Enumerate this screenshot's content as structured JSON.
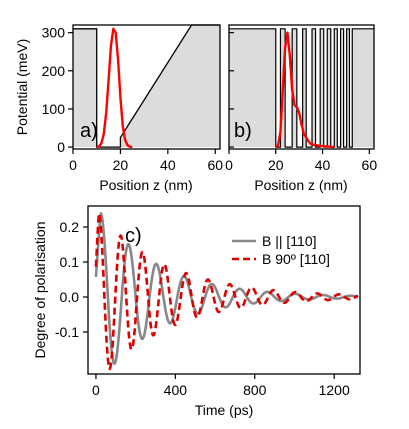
{
  "chart_data": [
    {
      "panel": "a)",
      "type": "line",
      "xlabel": "Position z (nm)",
      "ylabel": "Potential (meV)",
      "xlim": [
        0,
        62
      ],
      "ylim": [
        -5,
        320
      ],
      "xticks": [
        0,
        20,
        40,
        60
      ],
      "yticks": [
        0,
        100,
        200,
        300
      ],
      "potential": {
        "x": [
          0,
          10,
          10,
          18,
          18,
          20,
          20,
          50,
          50,
          62
        ],
        "y": [
          310,
          310,
          0,
          0,
          0,
          0,
          25,
          320,
          320,
          320
        ]
      },
      "wavefunction": {
        "x": [
          10,
          11,
          12,
          13,
          14,
          15,
          16,
          17,
          18,
          19,
          20,
          21,
          22,
          23,
          24,
          25
        ],
        "y": [
          0,
          2,
          10,
          35,
          90,
          175,
          265,
          310,
          300,
          230,
          130,
          55,
          18,
          5,
          1,
          0
        ]
      },
      "grid": false
    },
    {
      "panel": "b)",
      "type": "line",
      "xlabel": "Position z (nm)",
      "xlim": [
        0,
        62
      ],
      "ylim": [
        -5,
        320
      ],
      "xticks": [
        0,
        20,
        40,
        60
      ],
      "yticks": [
        0,
        100,
        200,
        300
      ],
      "barrier_height": 310,
      "barriers": [
        [
          0,
          20
        ],
        [
          22,
          24
        ],
        [
          27,
          29
        ],
        [
          31.5,
          33
        ],
        [
          35.5,
          37
        ],
        [
          39,
          40.5
        ],
        [
          42,
          43.5
        ],
        [
          45,
          46.3
        ],
        [
          47.7,
          49
        ],
        [
          50.3,
          51.5
        ],
        [
          52.7,
          62
        ]
      ],
      "wavefunction": {
        "x": [
          20,
          21,
          22,
          23,
          24,
          25,
          26,
          27,
          28,
          29,
          30,
          31,
          32,
          33,
          34,
          35,
          37,
          39,
          41,
          43,
          45
        ],
        "y": [
          0,
          5,
          40,
          150,
          260,
          300,
          240,
          150,
          110,
          105,
          90,
          60,
          35,
          25,
          15,
          8,
          5,
          3,
          2,
          1,
          0
        ]
      },
      "grid": false
    },
    {
      "panel": "c)",
      "type": "line",
      "xlabel": "Time (ps)",
      "ylabel": "Degree of polarisation",
      "xlim": [
        -40,
        1330
      ],
      "ylim": [
        -0.22,
        0.26
      ],
      "xticks": [
        0,
        400,
        800,
        1200
      ],
      "yticks": [
        -0.1,
        0.0,
        0.1,
        0.2
      ],
      "legend_position": "top-right",
      "series": [
        {
          "name": "B || [110]",
          "color": "#888888",
          "style": "solid",
          "amp": 0.24,
          "period_ps": 140,
          "decay_ps": 300,
          "peak_t_ps": 25,
          "start_ps": 0
        },
        {
          "name": "B 90º [110]",
          "color": "#dd0000",
          "style": "dashed",
          "amp": 0.24,
          "period_ps": 110,
          "decay_ps": 350,
          "peak_t_ps": 15,
          "start_ps": 0
        }
      ],
      "grid": false
    }
  ],
  "colors": {
    "fill": "#dcdcdc",
    "wavefunction": "#ff0000",
    "series1": "#888888",
    "series2": "#dd0000"
  }
}
